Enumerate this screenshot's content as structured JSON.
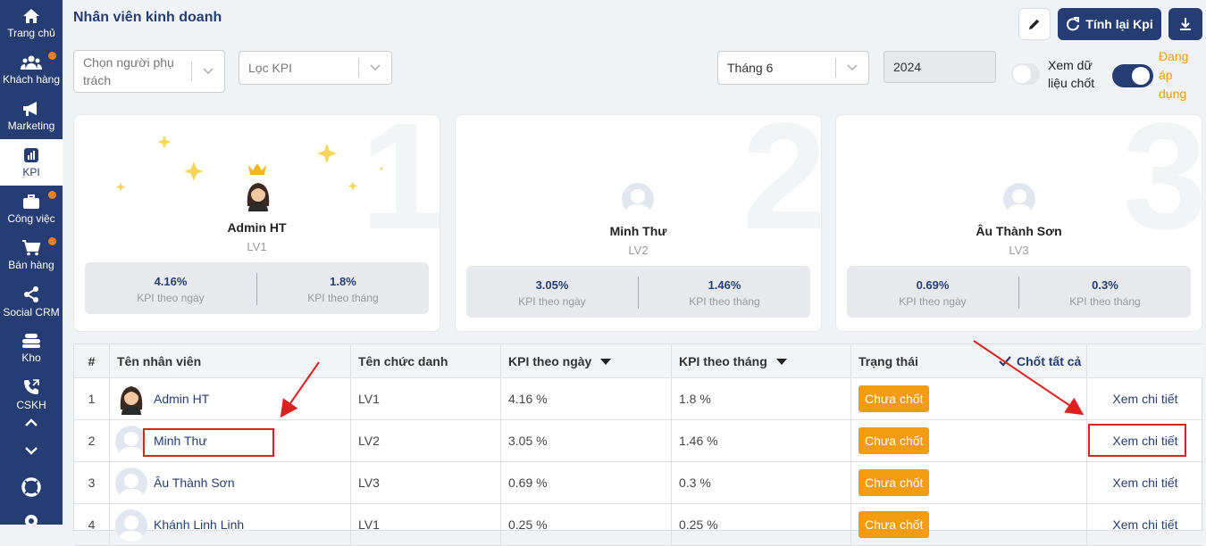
{
  "sidebar": {
    "items": [
      {
        "label": "Trang chủ",
        "icon": "home-icon"
      },
      {
        "label": "Khách hàng",
        "icon": "users-icon"
      },
      {
        "label": "Marketing",
        "icon": "megaphone-icon"
      },
      {
        "label": "KPI",
        "icon": "chart-icon"
      },
      {
        "label": "Công việc",
        "icon": "briefcase-icon"
      },
      {
        "label": "Bán hàng",
        "icon": "cart-icon"
      },
      {
        "label": "Social CRM",
        "icon": "share-icon"
      },
      {
        "label": "Kho",
        "icon": "warehouse-icon"
      },
      {
        "label": "CSKH",
        "icon": "phone-icon"
      }
    ]
  },
  "header": {
    "title": "Nhân viên kinh doanh",
    "recalc_label": "Tính lại Kpi"
  },
  "filters": {
    "person_placeholder": "Chọn người phụ trách",
    "kpi_placeholder": "Lọc KPI",
    "month_value": "Tháng 6",
    "year_value": "2024",
    "view_locked_label": "Xem dữ liệu chốt",
    "applying_label": "Đang áp dụng"
  },
  "podium": [
    {
      "rank": "1",
      "name": "Admin HT",
      "level": "LV1",
      "kpi_day": "4.16%",
      "kpi_month": "1.8%"
    },
    {
      "rank": "2",
      "name": "Minh Thư",
      "level": "LV2",
      "kpi_day": "3.05%",
      "kpi_month": "1.46%"
    },
    {
      "rank": "3",
      "name": "Âu Thành Sơn",
      "level": "LV3",
      "kpi_day": "0.69%",
      "kpi_month": "0.3%"
    }
  ],
  "podium_labels": {
    "kpi_day": "KPI theo ngày",
    "kpi_month": "KPI theo tháng"
  },
  "table": {
    "headers": {
      "index": "#",
      "name": "Tên nhân viên",
      "position": "Tên chức danh",
      "kpi_day": "KPI theo ngày",
      "kpi_month": "KPI theo tháng",
      "status": "Trạng thái",
      "lock_all": "Chốt tất cả"
    },
    "rows": [
      {
        "index": "1",
        "name": "Admin HT",
        "position": "LV1",
        "kpi_day": "4.16 %",
        "kpi_month": "1.8 %",
        "status": "Chưa chốt",
        "action": "Xem chi tiết"
      },
      {
        "index": "2",
        "name": "Minh Thư",
        "position": "LV2",
        "kpi_day": "3.05 %",
        "kpi_month": "1.46 %",
        "status": "Chưa chốt",
        "action": "Xem chi tiết"
      },
      {
        "index": "3",
        "name": "Âu Thành Sơn",
        "position": "LV3",
        "kpi_day": "0.69 %",
        "kpi_month": "0.3 %",
        "status": "Chưa chốt",
        "action": "Xem chi tiết"
      },
      {
        "index": "4",
        "name": "Khánh Linh Linh",
        "position": "LV1",
        "kpi_day": "0.25 %",
        "kpi_month": "0.25 %",
        "status": "Chưa chốt",
        "action": "Xem chi tiết"
      }
    ]
  },
  "colors": {
    "brand": "#263d74",
    "accent": "#f39c12",
    "annotation": "#e02020"
  }
}
